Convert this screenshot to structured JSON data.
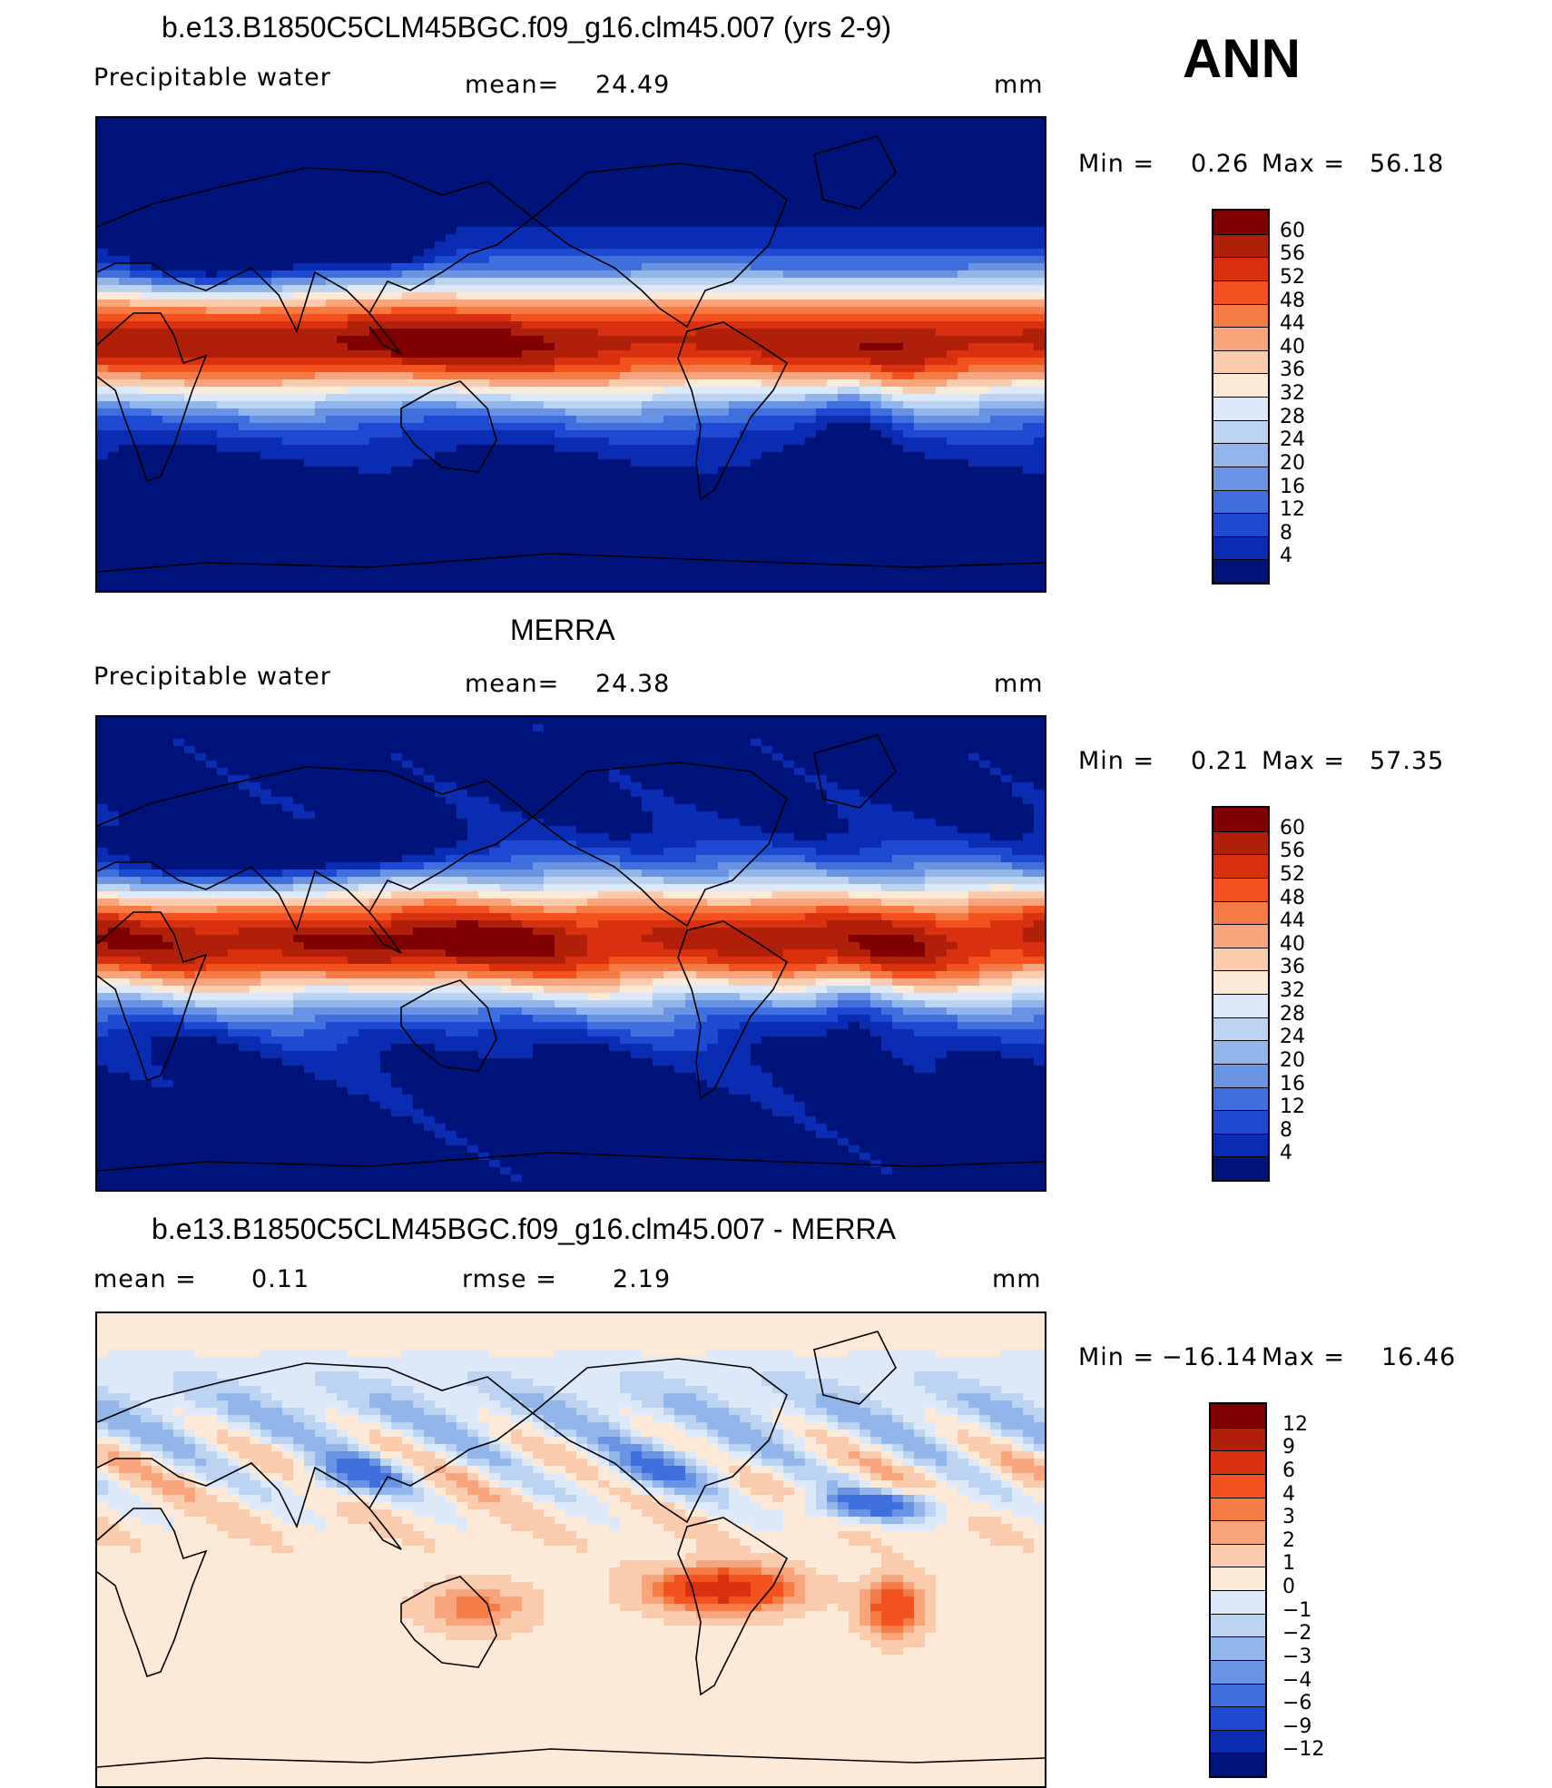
{
  "season": "ANN",
  "panels": [
    {
      "id": "model",
      "title": "b.e13.B1850C5CLM45BGC.f09_g16.clm45.007 (yrs 2-9)",
      "left_label": "Precipitable  water",
      "stat_label": "mean=",
      "stat_value": "24.49",
      "units": "mm",
      "min_label": "Min  =",
      "min_value": "0.26",
      "max_label": "Max  =",
      "max_value": "56.18",
      "field_type": "abs"
    },
    {
      "id": "obs",
      "title": "MERRA",
      "left_label": "Precipitable  water",
      "stat_label": "mean=",
      "stat_value": "24.38",
      "units": "mm",
      "min_label": "Min  =",
      "min_value": "0.21",
      "max_label": "Max  =",
      "max_value": "57.35",
      "field_type": "abs"
    },
    {
      "id": "diff",
      "title": "b.e13.B1850C5CLM45BGC.f09_g16.clm45.007 - MERRA",
      "left_label": "mean  =",
      "left_value": "0.11",
      "stat_label": "rmse  =",
      "stat_value": "2.19",
      "units": "mm",
      "min_label": "Min  =",
      "min_value": "−16.14",
      "max_label": "Max  =",
      "max_value": "16.46",
      "field_type": "diff"
    }
  ],
  "colorbars": {
    "abs": {
      "levels": [
        "60",
        "56",
        "52",
        "48",
        "44",
        "40",
        "36",
        "32",
        "28",
        "24",
        "20",
        "16",
        "12",
        "8",
        "4"
      ],
      "colors": [
        "#7f0000",
        "#b01f0a",
        "#d9300f",
        "#f3511d",
        "#f77b45",
        "#f9a47c",
        "#fbcbae",
        "#fde9d8",
        "#dde9f8",
        "#bcd3f1",
        "#93b6ea",
        "#6a94e3",
        "#3f6fdc",
        "#1e4ad3",
        "#0a2cb3",
        "#00137a"
      ]
    },
    "diff": {
      "levels": [
        "12",
        "9",
        "6",
        "4",
        "3",
        "2",
        "1",
        "0",
        "−1",
        "−2",
        "−3",
        "−4",
        "−6",
        "−9",
        "−12"
      ],
      "colors": [
        "#7f0000",
        "#b01f0a",
        "#d9300f",
        "#f3511d",
        "#f77b45",
        "#f9a47c",
        "#fbcbae",
        "#fde9d8",
        "#dde9f8",
        "#bcd3f1",
        "#93b6ea",
        "#6a94e3",
        "#3f6fdc",
        "#1e4ad3",
        "#0a2cb3",
        "#00137a"
      ]
    }
  }
}
